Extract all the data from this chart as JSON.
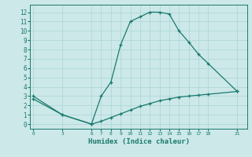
{
  "xlabel": "Humidex (Indice chaleur)",
  "bg_color": "#cce8e8",
  "line_color": "#1a7a6e",
  "grid_color": "#b0d8d8",
  "x_ticks": [
    0,
    3,
    6,
    7,
    8,
    9,
    10,
    11,
    12,
    13,
    14,
    15,
    16,
    17,
    18,
    21
  ],
  "y_ticks": [
    0,
    1,
    2,
    3,
    4,
    5,
    6,
    7,
    8,
    9,
    10,
    11,
    12
  ],
  "xlim": [
    -0.3,
    22
  ],
  "ylim": [
    -0.5,
    12.8
  ],
  "line1_x": [
    0,
    3,
    6,
    7,
    8,
    9,
    10,
    11,
    12,
    13,
    14,
    15,
    16,
    17,
    18,
    21
  ],
  "line1_y": [
    3,
    1,
    0,
    3,
    4.5,
    8.5,
    11,
    11.5,
    12,
    12,
    11.8,
    10,
    8.8,
    7.5,
    6.5,
    3.5
  ],
  "line2_x": [
    0,
    3,
    6,
    7,
    8,
    9,
    10,
    11,
    12,
    13,
    14,
    15,
    16,
    17,
    18,
    21
  ],
  "line2_y": [
    2.7,
    1,
    0,
    0.3,
    0.7,
    1.1,
    1.5,
    1.9,
    2.2,
    2.5,
    2.7,
    2.9,
    3.0,
    3.1,
    3.2,
    3.5
  ],
  "tick_fontsize": 5.5,
  "xlabel_fontsize": 6.5
}
